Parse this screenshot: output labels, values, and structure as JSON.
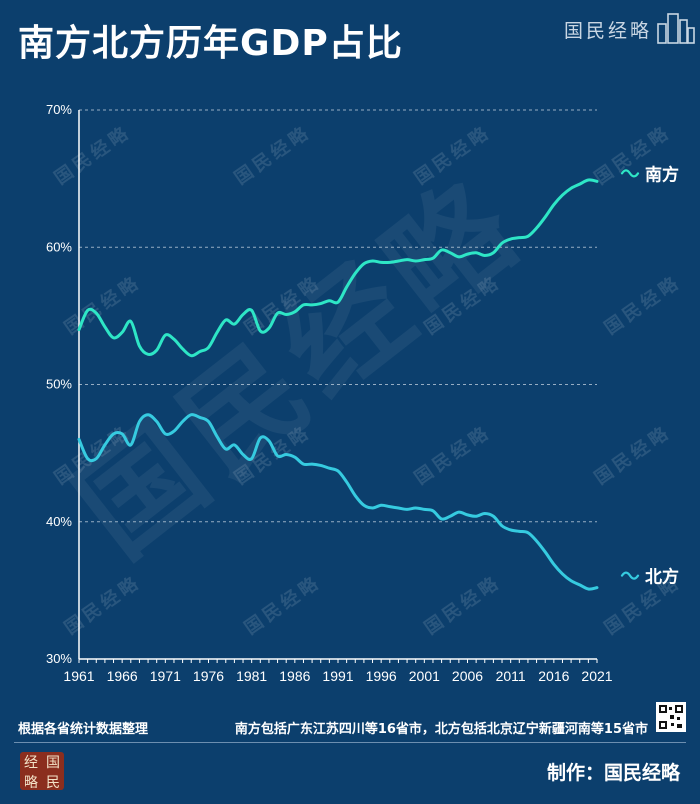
{
  "title": "南方北方历年GDP占比",
  "brand": "国民经略",
  "watermark": "国民经略",
  "note_left": "根据各省统计数据整理",
  "note_right": "南方包括广东江苏四川等16省市，北方包括北京辽宁新疆河南等15省市",
  "logo_chars": [
    "经",
    "国",
    "略",
    "民"
  ],
  "credit": "制作：国民经略",
  "colors": {
    "background": "#0c3f6d",
    "south": "#2ee6c6",
    "north": "#36cbe0",
    "grid": "#b9c9d8"
  },
  "chart_data": {
    "type": "line",
    "x": [
      1961,
      1962,
      1963,
      1964,
      1965,
      1966,
      1967,
      1968,
      1969,
      1970,
      1971,
      1972,
      1973,
      1974,
      1975,
      1976,
      1977,
      1978,
      1979,
      1980,
      1981,
      1982,
      1983,
      1984,
      1985,
      1986,
      1987,
      1988,
      1989,
      1990,
      1991,
      1992,
      1993,
      1994,
      1995,
      1996,
      1997,
      1998,
      1999,
      2000,
      2001,
      2002,
      2003,
      2004,
      2005,
      2006,
      2007,
      2008,
      2009,
      2010,
      2011,
      2012,
      2013,
      2014,
      2015,
      2016,
      2017,
      2018,
      2019,
      2020,
      2021
    ],
    "series": [
      {
        "name": "南方",
        "values": [
          54.0,
          55.4,
          55.2,
          54.2,
          53.4,
          53.8,
          54.6,
          52.8,
          52.2,
          52.5,
          53.6,
          53.3,
          52.6,
          52.1,
          52.4,
          52.7,
          53.8,
          54.7,
          54.4,
          55.1,
          55.4,
          53.9,
          54.1,
          55.2,
          55.1,
          55.3,
          55.8,
          55.8,
          55.9,
          56.1,
          56.0,
          57.1,
          58.1,
          58.8,
          59.0,
          58.9,
          58.9,
          59.0,
          59.1,
          59.0,
          59.1,
          59.2,
          59.8,
          59.6,
          59.3,
          59.5,
          59.6,
          59.4,
          59.6,
          60.3,
          60.6,
          60.7,
          60.8,
          61.4,
          62.2,
          63.1,
          63.8,
          64.3,
          64.6,
          64.9,
          64.8
        ]
      },
      {
        "name": "北方",
        "values": [
          46.0,
          44.6,
          44.6,
          45.6,
          46.4,
          46.4,
          45.6,
          47.3,
          47.8,
          47.3,
          46.4,
          46.6,
          47.3,
          47.8,
          47.6,
          47.3,
          46.2,
          45.3,
          45.6,
          44.9,
          44.6,
          46.1,
          45.9,
          44.8,
          44.9,
          44.7,
          44.2,
          44.2,
          44.1,
          43.9,
          43.7,
          42.9,
          41.9,
          41.2,
          41.0,
          41.2,
          41.1,
          41.0,
          40.9,
          41.0,
          40.9,
          40.8,
          40.2,
          40.4,
          40.7,
          40.5,
          40.4,
          40.6,
          40.4,
          39.7,
          39.4,
          39.3,
          39.2,
          38.6,
          37.8,
          36.9,
          36.2,
          35.7,
          35.4,
          35.1,
          35.2
        ]
      }
    ],
    "ylim": [
      30,
      70
    ],
    "yticks": [
      "30%",
      "40%",
      "50%",
      "60%",
      "70%"
    ],
    "xticks": [
      "1961",
      "1966",
      "1971",
      "1976",
      "1981",
      "1986",
      "1991",
      "1996",
      "2001",
      "2006",
      "2011",
      "2016",
      "2021"
    ],
    "grid": true,
    "legend": "inline-right"
  }
}
